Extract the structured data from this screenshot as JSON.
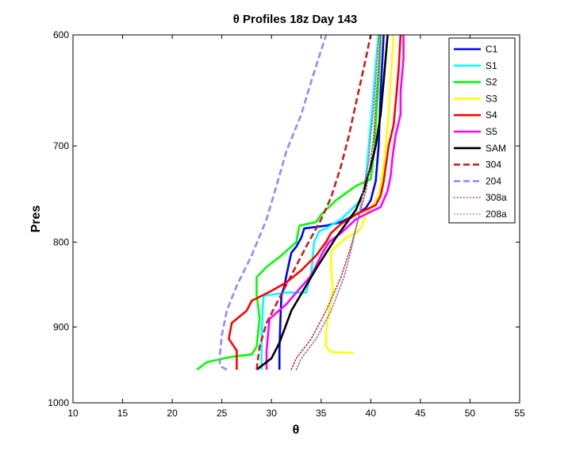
{
  "chart_data": {
    "type": "line",
    "title": "θ Profiles 18z Day 143",
    "xlabel": "θ",
    "ylabel": "Pres",
    "xlim": [
      10,
      55
    ],
    "ylim": [
      600,
      1000
    ],
    "y_scale": "log",
    "y_reversed": true,
    "x_ticks": [
      10,
      15,
      20,
      25,
      30,
      35,
      40,
      45,
      50,
      55
    ],
    "y_ticks": [
      600,
      700,
      800,
      900,
      1000
    ],
    "grid": false,
    "legend_position": "top-right",
    "series": [
      {
        "name": "C1",
        "color": "#0000ff",
        "dash": "solid",
        "points": [
          [
            30.8,
            955
          ],
          [
            30.8,
            930
          ],
          [
            30.9,
            890
          ],
          [
            31.0,
            862
          ],
          [
            31.3,
            850
          ],
          [
            31.5,
            838
          ],
          [
            31.8,
            822
          ],
          [
            32.0,
            812
          ],
          [
            32.5,
            805
          ],
          [
            33.0,
            795
          ],
          [
            33.3,
            785
          ],
          [
            35.5,
            782
          ],
          [
            37.0,
            778
          ],
          [
            38.5,
            770
          ],
          [
            39.5,
            763
          ],
          [
            40.0,
            755
          ],
          [
            40.5,
            735
          ],
          [
            40.8,
            700
          ],
          [
            41.0,
            650
          ],
          [
            41.3,
            600
          ]
        ]
      },
      {
        "name": "S1",
        "color": "#00ffff",
        "dash": "solid",
        "points": [
          [
            29.0,
            955
          ],
          [
            29.0,
            920
          ],
          [
            29.1,
            880
          ],
          [
            29.2,
            862
          ],
          [
            31.5,
            858
          ],
          [
            33.5,
            858
          ],
          [
            34.0,
            835
          ],
          [
            34.3,
            800
          ],
          [
            34.8,
            788
          ],
          [
            35.5,
            785
          ],
          [
            37.0,
            775
          ],
          [
            38.0,
            765
          ],
          [
            39.0,
            755
          ],
          [
            39.5,
            735
          ],
          [
            39.8,
            700
          ],
          [
            40.2,
            660
          ],
          [
            40.5,
            625
          ],
          [
            40.8,
            600
          ]
        ]
      },
      {
        "name": "S2",
        "color": "#00ff00",
        "dash": "solid",
        "points": [
          [
            22.5,
            955
          ],
          [
            23.5,
            945
          ],
          [
            26.0,
            938
          ],
          [
            28.0,
            935
          ],
          [
            28.5,
            925
          ],
          [
            28.8,
            890
          ],
          [
            28.5,
            860
          ],
          [
            28.5,
            840
          ],
          [
            29.5,
            828
          ],
          [
            31.0,
            815
          ],
          [
            32.5,
            800
          ],
          [
            32.8,
            782
          ],
          [
            34.5,
            778
          ],
          [
            35.0,
            770
          ],
          [
            36.5,
            755
          ],
          [
            38.5,
            740
          ],
          [
            40.0,
            733
          ],
          [
            40.3,
            710
          ],
          [
            40.5,
            680
          ],
          [
            40.8,
            640
          ],
          [
            41.0,
            600
          ]
        ]
      },
      {
        "name": "S3",
        "color": "#ffff00",
        "dash": "solid",
        "points": [
          [
            38.3,
            933
          ],
          [
            36.0,
            932
          ],
          [
            35.5,
            925
          ],
          [
            35.5,
            905
          ],
          [
            35.8,
            880
          ],
          [
            36.2,
            855
          ],
          [
            36.0,
            830
          ],
          [
            36.0,
            810
          ],
          [
            37.5,
            795
          ],
          [
            38.5,
            790
          ],
          [
            39.0,
            785
          ],
          [
            39.5,
            770
          ],
          [
            40.8,
            750
          ],
          [
            41.3,
            720
          ],
          [
            41.5,
            700
          ],
          [
            41.8,
            670
          ],
          [
            42.0,
            640
          ],
          [
            42.3,
            600
          ]
        ]
      },
      {
        "name": "S4",
        "color": "#ff0000",
        "dash": "solid",
        "points": [
          [
            26.5,
            955
          ],
          [
            26.5,
            930
          ],
          [
            25.7,
            915
          ],
          [
            26.0,
            895
          ],
          [
            27.5,
            880
          ],
          [
            28.0,
            868
          ],
          [
            30.0,
            856
          ],
          [
            31.5,
            846
          ],
          [
            33.0,
            832
          ],
          [
            34.5,
            815
          ],
          [
            35.5,
            800
          ],
          [
            36.0,
            790
          ],
          [
            37.0,
            780
          ],
          [
            38.5,
            770
          ],
          [
            40.5,
            760
          ],
          [
            41.0,
            750
          ],
          [
            41.3,
            735
          ],
          [
            41.8,
            700
          ],
          [
            42.3,
            680
          ],
          [
            42.6,
            650
          ],
          [
            42.8,
            630
          ],
          [
            43.0,
            600
          ]
        ]
      },
      {
        "name": "S5",
        "color": "#ff00ff",
        "dash": "solid",
        "points": [
          [
            29.5,
            955
          ],
          [
            29.5,
            930
          ],
          [
            29.8,
            890
          ],
          [
            31.5,
            872
          ],
          [
            32.5,
            858
          ],
          [
            34.0,
            838
          ],
          [
            35.0,
            815
          ],
          [
            35.8,
            800
          ],
          [
            37.0,
            790
          ],
          [
            38.5,
            775
          ],
          [
            39.8,
            768
          ],
          [
            41.0,
            762
          ],
          [
            41.7,
            745
          ],
          [
            42.0,
            730
          ],
          [
            42.2,
            710
          ],
          [
            42.5,
            690
          ],
          [
            43.0,
            670
          ],
          [
            43.0,
            650
          ],
          [
            43.3,
            620
          ],
          [
            43.3,
            600
          ]
        ]
      },
      {
        "name": "SAM",
        "color": "#000000",
        "dash": "solid",
        "points": [
          [
            28.5,
            955
          ],
          [
            30.0,
            940
          ],
          [
            30.8,
            920
          ],
          [
            32.0,
            880
          ],
          [
            34.5,
            830
          ],
          [
            36.5,
            795
          ],
          [
            38.5,
            765
          ],
          [
            39.3,
            745
          ],
          [
            40.0,
            720
          ],
          [
            40.5,
            700
          ],
          [
            41.0,
            670
          ],
          [
            41.3,
            640
          ],
          [
            41.7,
            600
          ]
        ]
      },
      {
        "name": "304",
        "color": "#c81e1e",
        "dash": "dashed",
        "points": [
          [
            28.5,
            955
          ],
          [
            28.8,
            925
          ],
          [
            29.5,
            895
          ],
          [
            31.0,
            860
          ],
          [
            33.5,
            805
          ],
          [
            35.0,
            775
          ],
          [
            36.0,
            752
          ],
          [
            37.0,
            720
          ],
          [
            37.8,
            690
          ],
          [
            38.5,
            660
          ],
          [
            39.0,
            640
          ],
          [
            39.5,
            620
          ],
          [
            40.0,
            600
          ]
        ]
      },
      {
        "name": "204",
        "color": "#8c8cff",
        "dash": "dashed",
        "points": [
          [
            25.5,
            955
          ],
          [
            24.8,
            950
          ],
          [
            24.8,
            935
          ],
          [
            25.0,
            910
          ],
          [
            25.5,
            880
          ],
          [
            26.5,
            850
          ],
          [
            28.0,
            815
          ],
          [
            29.5,
            775
          ],
          [
            30.5,
            740
          ],
          [
            31.5,
            705
          ],
          [
            33.0,
            670
          ],
          [
            34.0,
            640
          ],
          [
            35.0,
            613
          ],
          [
            35.5,
            600
          ]
        ]
      },
      {
        "name": "308a",
        "color": "#c83232",
        "dash": "dotted",
        "points": [
          [
            32.0,
            955
          ],
          [
            32.5,
            940
          ],
          [
            34.0,
            915
          ],
          [
            35.5,
            880
          ],
          [
            37.0,
            840
          ],
          [
            38.0,
            805
          ],
          [
            38.5,
            785
          ],
          [
            39.0,
            765
          ],
          [
            39.5,
            745
          ],
          [
            40.0,
            715
          ],
          [
            40.3,
            690
          ],
          [
            40.5,
            660
          ],
          [
            40.8,
            625
          ],
          [
            41.0,
            600
          ]
        ]
      },
      {
        "name": "208a",
        "color": "#8c6eb4",
        "dash": "dotted",
        "points": [
          [
            32.5,
            955
          ],
          [
            33.0,
            940
          ],
          [
            34.5,
            915
          ],
          [
            36.0,
            880
          ],
          [
            37.3,
            840
          ],
          [
            38.0,
            810
          ],
          [
            38.5,
            785
          ],
          [
            39.0,
            760
          ],
          [
            39.3,
            740
          ],
          [
            39.8,
            715
          ],
          [
            40.0,
            690
          ],
          [
            40.3,
            665
          ],
          [
            40.5,
            640
          ],
          [
            40.7,
            615
          ],
          [
            40.8,
            600
          ]
        ]
      }
    ]
  }
}
